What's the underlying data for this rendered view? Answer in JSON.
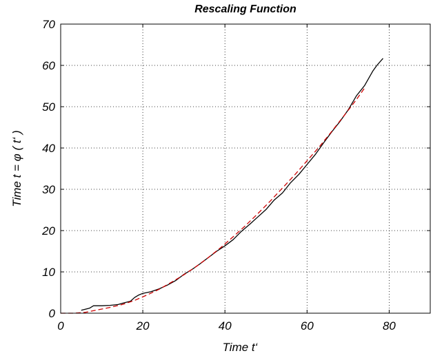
{
  "chart_data": {
    "type": "line",
    "title": "Rescaling Function",
    "xlabel": "Time  t‘",
    "ylabel": "Time   t = φ ( t‘ )",
    "xlim": [
      0,
      90
    ],
    "ylim": [
      0,
      70
    ],
    "xticks": [
      0,
      20,
      40,
      60,
      80
    ],
    "yticks": [
      0,
      10,
      20,
      30,
      40,
      50,
      60,
      70
    ],
    "grid": true,
    "legend": "none",
    "series": [
      {
        "style": "solid",
        "color": "#000000",
        "x": [
          5,
          7,
          8,
          10,
          12,
          14,
          15,
          17,
          18,
          19,
          20,
          22,
          24,
          26,
          28,
          30,
          32,
          34,
          36,
          38,
          40,
          42,
          44,
          46,
          48,
          50,
          52,
          54,
          56,
          58,
          60,
          62,
          64,
          66,
          68,
          70,
          72,
          74,
          76,
          77,
          78.5
        ],
        "y": [
          0.7,
          1.2,
          1.8,
          1.8,
          1.9,
          2.1,
          2.4,
          2.9,
          3.8,
          4.4,
          4.8,
          5.2,
          5.9,
          6.8,
          7.9,
          9.4,
          10.6,
          12.0,
          13.5,
          15.0,
          16.3,
          17.8,
          19.8,
          21.5,
          23.3,
          25.1,
          27.4,
          29.1,
          31.6,
          33.6,
          36.0,
          38.4,
          41.2,
          43.9,
          46.4,
          49.2,
          52.6,
          55.1,
          58.6,
          60.0,
          61.7
        ]
      },
      {
        "style": "dashed",
        "color": "#cc0000",
        "x": [
          0,
          3,
          6,
          9,
          12,
          15,
          18,
          21,
          24,
          27,
          30,
          33,
          36,
          39,
          42,
          45,
          48,
          51,
          54,
          57,
          60,
          63,
          66,
          69,
          72,
          74
        ],
        "y": [
          0,
          0,
          0.2,
          0.8,
          1.4,
          2.1,
          3.1,
          4.4,
          5.8,
          7.5,
          9.3,
          11.3,
          13.5,
          15.9,
          18.5,
          21.2,
          24.1,
          27.1,
          30.3,
          33.5,
          36.9,
          40.3,
          44.0,
          47.8,
          51.7,
          54.5
        ]
      }
    ]
  }
}
